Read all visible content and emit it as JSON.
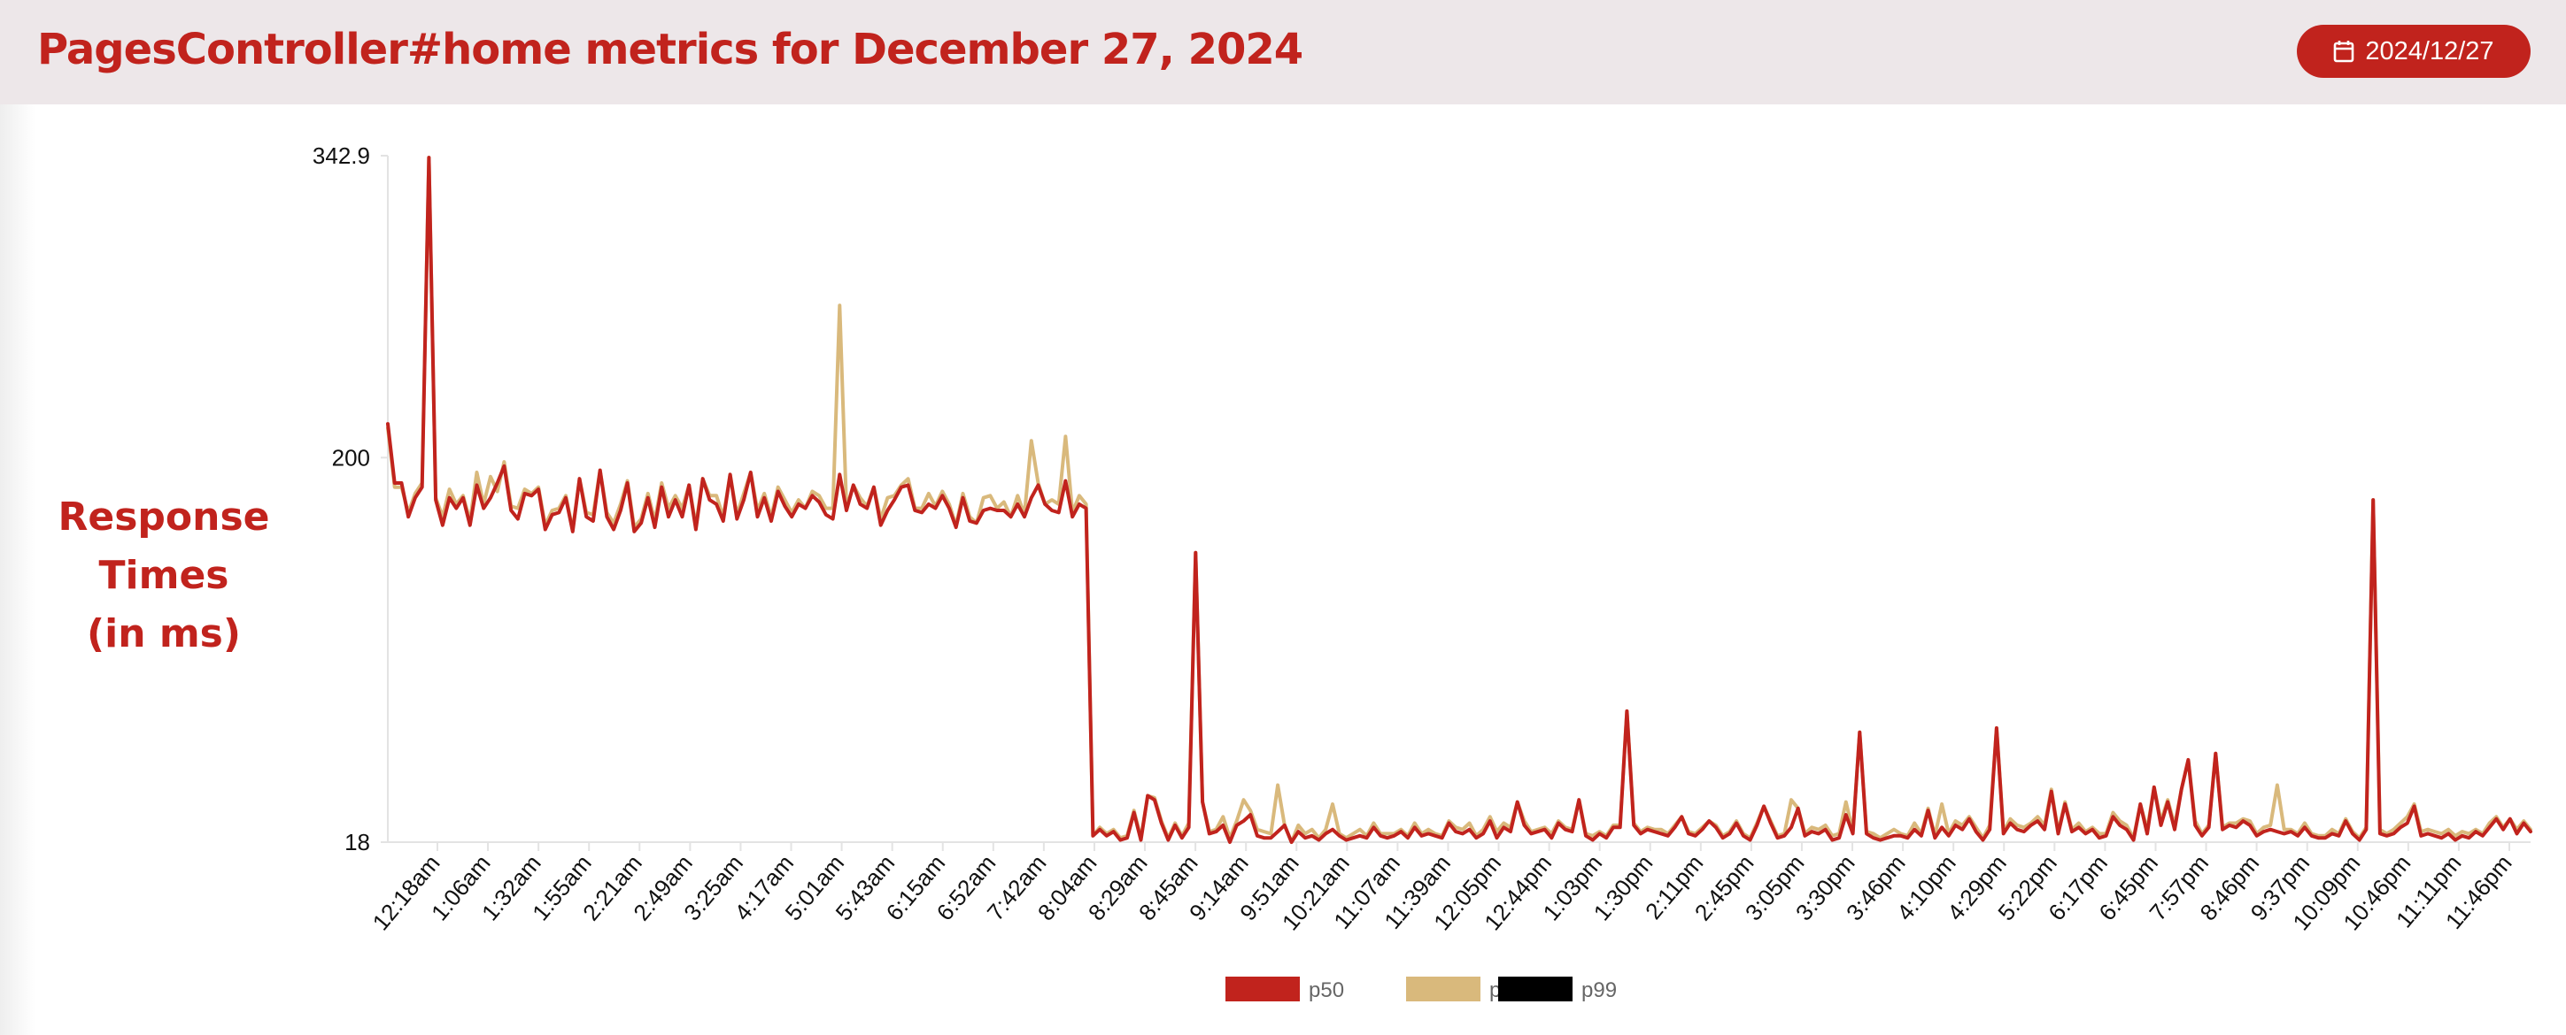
{
  "header": {
    "title": "PagesController#home metrics for December 27, 2024",
    "date_button_label": "2024/12/27",
    "date_button_icon": "calendar-icon"
  },
  "colors": {
    "accent": "#c1231d",
    "header_bg": "#ede7e9",
    "p50": "#c1231d",
    "p95": "#d9b97c",
    "p99": "#000000"
  },
  "chart_data": {
    "type": "line",
    "title": "PagesController#home metrics for December 27, 2024",
    "ylabel_lines": [
      "Response",
      "Times",
      "(in ms)"
    ],
    "xlabel": "",
    "ylim": [
      18,
      342.9
    ],
    "yticks": [
      18,
      200,
      342.9
    ],
    "ytick_labels": [
      "18",
      "200",
      "342.9"
    ],
    "grid": false,
    "legend_position": "bottom-center",
    "x_tick_labels": [
      "12:18am",
      "1:06am",
      "1:32am",
      "1:55am",
      "2:21am",
      "2:49am",
      "3:25am",
      "4:17am",
      "5:01am",
      "5:43am",
      "6:15am",
      "6:52am",
      "7:42am",
      "8:04am",
      "8:29am",
      "8:45am",
      "9:14am",
      "9:51am",
      "10:21am",
      "11:07am",
      "11:39am",
      "12:05pm",
      "12:44pm",
      "1:03pm",
      "1:30pm",
      "2:11pm",
      "2:45pm",
      "3:05pm",
      "3:30pm",
      "3:46pm",
      "4:10pm",
      "4:29pm",
      "5:22pm",
      "6:17pm",
      "6:45pm",
      "7:57pm",
      "8:46pm",
      "9:37pm",
      "10:09pm",
      "10:46pm",
      "11:11pm",
      "11:46pm"
    ],
    "series": [
      {
        "name": "p50",
        "color": "#c1231d",
        "values": [
          216,
          188,
          188,
          172,
          181,
          186,
          342,
          180,
          168,
          181,
          176,
          181,
          168,
          187,
          176,
          181,
          188,
          196,
          175,
          171,
          183,
          182,
          185,
          166,
          173,
          174,
          181,
          165,
          190,
          172,
          170,
          194,
          172,
          166,
          175,
          188,
          165,
          169,
          181,
          167,
          186,
          172,
          180,
          172,
          187,
          166,
          190,
          180,
          178,
          170,
          192,
          171,
          180,
          193,
          172,
          181,
          170,
          184,
          177,
          172,
          178,
          176,
          182,
          179,
          173,
          171,
          192,
          175,
          187,
          178,
          176,
          186,
          168,
          175,
          180,
          186,
          187,
          175,
          174,
          178,
          176,
          182,
          176,
          167,
          181,
          170,
          169,
          175,
          176,
          175,
          175,
          172,
          178,
          172,
          181,
          187,
          178,
          175,
          174,
          189,
          172,
          178,
          176,
          21,
          24,
          21,
          23,
          19,
          20,
          32,
          19,
          40,
          38,
          27,
          19,
          26,
          20,
          25,
          155,
          37,
          22,
          23,
          26,
          18,
          26,
          28,
          31,
          21,
          20,
          20,
          23,
          26,
          18,
          23,
          20,
          21,
          19,
          22,
          24,
          21,
          19,
          20,
          21,
          20,
          25,
          21,
          20,
          21,
          23,
          20,
          25,
          21,
          22,
          21,
          20,
          27,
          23,
          22,
          24,
          20,
          22,
          28,
          20,
          25,
          23,
          37,
          26,
          22,
          23,
          24,
          20,
          27,
          24,
          23,
          38,
          21,
          19,
          22,
          20,
          25,
          25,
          80,
          26,
          22,
          24,
          23,
          22,
          21,
          25,
          30,
          22,
          21,
          24,
          28,
          25,
          20,
          22,
          27,
          21,
          19,
          26,
          35,
          27,
          20,
          21,
          25,
          34,
          21,
          23,
          22,
          24,
          19,
          20,
          31,
          22,
          70,
          22,
          20,
          19,
          20,
          21,
          21,
          20,
          24,
          21,
          33,
          20,
          25,
          21,
          26,
          24,
          29,
          23,
          19,
          24,
          72,
          22,
          27,
          24,
          23,
          26,
          28,
          24,
          42,
          22,
          36,
          23,
          25,
          22,
          24,
          20,
          21,
          30,
          26,
          24,
          19,
          36,
          22,
          44,
          26,
          37,
          24,
          43,
          57,
          26,
          21,
          25,
          60,
          24,
          26,
          25,
          28,
          26,
          21,
          23,
          24,
          23,
          22,
          23,
          21,
          25,
          21,
          20,
          20,
          22,
          21,
          28,
          22,
          19,
          24,
          180,
          22,
          21,
          22,
          25,
          27,
          35,
          21,
          22,
          21,
          20,
          22,
          19,
          21,
          20,
          23,
          21,
          25,
          29,
          24,
          29,
          22,
          27,
          23
        ]
      },
      {
        "name": "p95",
        "color": "#d9b97c",
        "values": [
          214,
          186,
          186,
          174,
          183,
          188,
          342,
          181,
          172,
          185,
          178,
          182,
          170,
          193,
          178,
          191,
          184,
          198,
          177,
          176,
          185,
          183,
          186,
          168,
          175,
          176,
          182,
          166,
          190,
          174,
          173,
          194,
          174,
          169,
          178,
          189,
          167,
          171,
          183,
          170,
          188,
          176,
          182,
          176,
          187,
          168,
          190,
          182,
          182,
          172,
          192,
          173,
          183,
          193,
          175,
          183,
          172,
          186,
          180,
          174,
          180,
          176,
          184,
          182,
          176,
          176,
          272,
          176,
          187,
          181,
          177,
          186,
          171,
          181,
          182,
          187,
          190,
          176,
          176,
          183,
          177,
          184,
          178,
          168,
          183,
          172,
          169,
          181,
          182,
          176,
          179,
          172,
          182,
          173,
          208,
          188,
          178,
          180,
          178,
          210,
          174,
          182,
          178,
          21,
          25,
          22,
          24,
          20,
          21,
          33,
          20,
          40,
          39,
          28,
          20,
          27,
          21,
          27,
          155,
          37,
          23,
          24,
          30,
          20,
          28,
          38,
          33,
          24,
          23,
          22,
          45,
          26,
          18,
          26,
          22,
          24,
          20,
          24,
          36,
          22,
          20,
          22,
          24,
          21,
          27,
          22,
          22,
          22,
          24,
          21,
          27,
          22,
          24,
          22,
          21,
          28,
          25,
          24,
          27,
          21,
          24,
          30,
          23,
          27,
          25,
          37,
          28,
          23,
          24,
          25,
          22,
          28,
          25,
          24,
          38,
          22,
          21,
          23,
          21,
          26,
          26,
          80,
          27,
          23,
          25,
          24,
          24,
          22,
          26,
          30,
          23,
          22,
          25,
          28,
          26,
          21,
          23,
          28,
          22,
          20,
          27,
          35,
          28,
          21,
          22,
          38,
          34,
          22,
          25,
          24,
          26,
          21,
          22,
          37,
          23,
          70,
          23,
          22,
          20,
          22,
          24,
          22,
          21,
          27,
          22,
          34,
          21,
          36,
          22,
          28,
          26,
          30,
          25,
          20,
          26,
          72,
          23,
          29,
          26,
          25,
          27,
          30,
          26,
          43,
          23,
          37,
          24,
          27,
          23,
          25,
          22,
          22,
          32,
          28,
          26,
          20,
          36,
          24,
          44,
          28,
          38,
          26,
          43,
          57,
          28,
          22,
          26,
          60,
          25,
          27,
          27,
          29,
          28,
          22,
          25,
          26,
          45,
          24,
          24,
          22,
          27,
          22,
          21,
          21,
          24,
          22,
          29,
          23,
          20,
          25,
          180,
          24,
          22,
          24,
          27,
          30,
          36,
          23,
          24,
          23,
          22,
          24,
          21,
          23,
          22,
          24,
          22,
          27,
          30,
          25,
          29,
          24,
          28,
          24
        ]
      },
      {
        "name": "p99",
        "color": "#000000",
        "values": []
      }
    ]
  }
}
